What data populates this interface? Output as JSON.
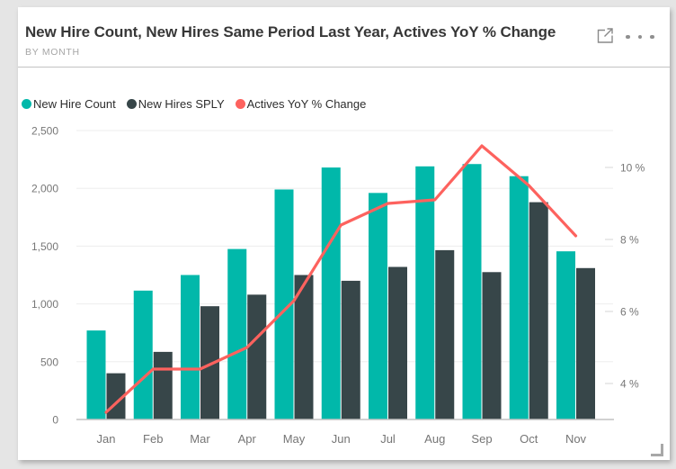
{
  "card": {
    "title": "New Hire Count, New Hires Same Period Last Year, Actives YoY % Change",
    "subtitle": "BY MONTH"
  },
  "icons": {
    "focus_mode": "focus-mode-icon",
    "more_options": "more-options-icon",
    "resize": "resize-handle-icon"
  },
  "legend": [
    {
      "label": "New Hire Count",
      "color": "#01b8aa"
    },
    {
      "label": "New Hires SPLY",
      "color": "#374649"
    },
    {
      "label": "Actives YoY % Change",
      "color": "#fd625e"
    }
  ],
  "chart_data": {
    "type": "combo-bar-line",
    "categories": [
      "Jan",
      "Feb",
      "Mar",
      "Apr",
      "May",
      "Jun",
      "Jul",
      "Aug",
      "Sep",
      "Oct",
      "Nov"
    ],
    "series": [
      {
        "name": "New Hire Count",
        "type": "bar",
        "axis": "left",
        "color": "#01b8aa",
        "values": [
          770,
          1115,
          1250,
          1475,
          1990,
          2180,
          1960,
          2190,
          2210,
          2105,
          1455
        ]
      },
      {
        "name": "New Hires SPLY",
        "type": "bar",
        "axis": "left",
        "color": "#374649",
        "values": [
          400,
          585,
          980,
          1080,
          1250,
          1200,
          1320,
          1465,
          1275,
          1880,
          1310
        ]
      },
      {
        "name": "Actives YoY % Change",
        "type": "line",
        "axis": "right",
        "color": "#fd625e",
        "values": [
          3.2,
          4.4,
          4.4,
          5.0,
          6.3,
          8.4,
          9.0,
          9.1,
          10.6,
          9.5,
          8.1
        ]
      }
    ],
    "left_axis": {
      "min": 0,
      "max": 2500,
      "step": 500,
      "tick_labels": [
        "0",
        "500",
        "1,000",
        "1,500",
        "2,000",
        "2,500"
      ]
    },
    "right_axis": {
      "ticks": [
        4,
        6,
        8,
        10
      ],
      "tick_labels": [
        "4 %",
        "6 %",
        "8 %",
        "10 %"
      ]
    },
    "grid": true,
    "legend_position": "top",
    "colors": {
      "gridline": "#ededed",
      "baseline": "#c2c2c2",
      "axis_text": "#777777"
    }
  }
}
